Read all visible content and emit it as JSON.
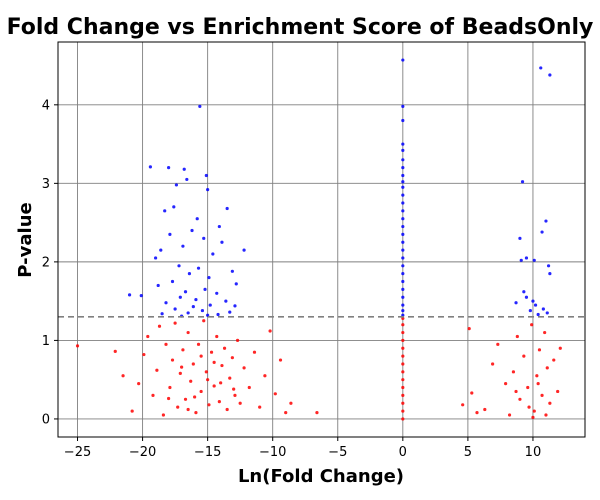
{
  "chart_data": {
    "type": "scatter",
    "title": "Fold Change vs Enrichment Score of BeadsOnly",
    "xlabel": "Ln(Fold Change)",
    "ylabel": "P-value",
    "xlim": [
      -26.5,
      14
    ],
    "ylim": [
      -0.23,
      4.8
    ],
    "x_ticks": [
      -25,
      -20,
      -15,
      -10,
      -5,
      0,
      5,
      10
    ],
    "y_ticks": [
      0,
      1,
      2,
      3,
      4
    ],
    "grid": true,
    "threshold": {
      "y": 1.3,
      "style": "dashed",
      "color": "#808080"
    },
    "colors": {
      "above_threshold": "#0000ff",
      "below_threshold": "#ff0000"
    },
    "series": [
      {
        "color": "#0000ff",
        "points": [
          [
            -15.6,
            3.98
          ],
          [
            -19.4,
            3.21
          ],
          [
            -18.0,
            3.2
          ],
          [
            -16.8,
            3.18
          ],
          [
            -15.1,
            3.1
          ],
          [
            -16.6,
            3.05
          ],
          [
            -17.4,
            2.98
          ],
          [
            -15.0,
            2.92
          ],
          [
            -13.5,
            2.68
          ],
          [
            -17.6,
            2.7
          ],
          [
            -18.3,
            2.65
          ],
          [
            -15.8,
            2.55
          ],
          [
            -14.1,
            2.45
          ],
          [
            -16.2,
            2.4
          ],
          [
            -17.9,
            2.35
          ],
          [
            -15.3,
            2.3
          ],
          [
            -13.9,
            2.25
          ],
          [
            -16.9,
            2.2
          ],
          [
            -18.6,
            2.15
          ],
          [
            -14.6,
            2.1
          ],
          [
            -19.0,
            2.05
          ],
          [
            -12.2,
            2.15
          ],
          [
            -17.2,
            1.95
          ],
          [
            -15.7,
            1.92
          ],
          [
            -13.1,
            1.88
          ],
          [
            -16.4,
            1.85
          ],
          [
            -14.9,
            1.8
          ],
          [
            -17.7,
            1.75
          ],
          [
            -18.8,
            1.7
          ],
          [
            -12.8,
            1.72
          ],
          [
            -15.2,
            1.65
          ],
          [
            -16.7,
            1.62
          ],
          [
            -14.3,
            1.6
          ],
          [
            -21.0,
            1.58
          ],
          [
            -20.1,
            1.57
          ],
          [
            -17.1,
            1.55
          ],
          [
            -15.9,
            1.52
          ],
          [
            -13.6,
            1.5
          ],
          [
            -18.2,
            1.48
          ],
          [
            -14.8,
            1.45
          ],
          [
            -16.1,
            1.43
          ],
          [
            -12.9,
            1.44
          ],
          [
            -17.5,
            1.4
          ],
          [
            -15.4,
            1.38
          ],
          [
            -13.3,
            1.36
          ],
          [
            -16.5,
            1.35
          ],
          [
            -14.2,
            1.33
          ],
          [
            -18.5,
            1.34
          ],
          [
            -15.0,
            1.32
          ],
          [
            -17.0,
            1.31
          ],
          [
            0,
            4.57
          ],
          [
            0,
            3.98
          ],
          [
            0,
            3.8
          ],
          [
            0,
            3.5
          ],
          [
            0,
            3.42
          ],
          [
            0,
            3.3
          ],
          [
            0,
            3.2
          ],
          [
            0,
            3.1
          ],
          [
            0,
            3.02
          ],
          [
            0,
            2.95
          ],
          [
            0,
            2.85
          ],
          [
            0,
            2.75
          ],
          [
            0,
            2.65
          ],
          [
            0,
            2.55
          ],
          [
            0,
            2.45
          ],
          [
            0,
            2.35
          ],
          [
            0,
            2.25
          ],
          [
            0,
            2.15
          ],
          [
            0,
            2.05
          ],
          [
            0,
            1.95
          ],
          [
            0,
            1.85
          ],
          [
            0,
            1.75
          ],
          [
            0,
            1.65
          ],
          [
            0,
            1.55
          ],
          [
            0,
            1.45
          ],
          [
            0,
            1.38
          ],
          [
            0,
            1.32
          ],
          [
            10.6,
            4.47
          ],
          [
            11.3,
            4.38
          ],
          [
            9.2,
            3.02
          ],
          [
            11.0,
            2.52
          ],
          [
            10.7,
            2.38
          ],
          [
            9.0,
            2.3
          ],
          [
            9.5,
            2.05
          ],
          [
            9.1,
            2.02
          ],
          [
            10.1,
            2.02
          ],
          [
            11.2,
            1.95
          ],
          [
            11.3,
            1.85
          ],
          [
            9.3,
            1.62
          ],
          [
            9.5,
            1.55
          ],
          [
            8.7,
            1.48
          ],
          [
            10.0,
            1.5
          ],
          [
            10.2,
            1.45
          ],
          [
            10.8,
            1.4
          ],
          [
            9.8,
            1.38
          ],
          [
            11.1,
            1.35
          ],
          [
            10.4,
            1.33
          ]
        ]
      },
      {
        "color": "#ff0000",
        "points": [
          [
            -25.0,
            0.93
          ],
          [
            -22.1,
            0.86
          ],
          [
            -21.5,
            0.55
          ],
          [
            -20.8,
            0.1
          ],
          [
            -20.3,
            0.45
          ],
          [
            -19.9,
            0.82
          ],
          [
            -19.6,
            1.05
          ],
          [
            -19.2,
            0.3
          ],
          [
            -18.9,
            0.62
          ],
          [
            -18.7,
            1.18
          ],
          [
            -18.4,
            0.05
          ],
          [
            -18.2,
            0.95
          ],
          [
            -17.9,
            0.4
          ],
          [
            -17.7,
            0.75
          ],
          [
            -17.5,
            1.22
          ],
          [
            -17.3,
            0.15
          ],
          [
            -17.1,
            0.58
          ],
          [
            -16.9,
            0.88
          ],
          [
            -16.7,
            0.25
          ],
          [
            -16.5,
            1.1
          ],
          [
            -16.3,
            0.48
          ],
          [
            -16.1,
            0.7
          ],
          [
            -15.9,
            0.08
          ],
          [
            -15.7,
            0.95
          ],
          [
            -15.5,
            0.35
          ],
          [
            -15.3,
            1.25
          ],
          [
            -15.1,
            0.6
          ],
          [
            -14.9,
            0.18
          ],
          [
            -14.7,
            0.85
          ],
          [
            -14.5,
            0.42
          ],
          [
            -14.3,
            1.05
          ],
          [
            -14.1,
            0.22
          ],
          [
            -13.9,
            0.68
          ],
          [
            -13.7,
            0.9
          ],
          [
            -13.5,
            0.12
          ],
          [
            -13.3,
            0.52
          ],
          [
            -13.1,
            0.78
          ],
          [
            -12.9,
            0.3
          ],
          [
            -12.7,
            1.0
          ],
          [
            -12.5,
            0.2
          ],
          [
            -12.2,
            0.65
          ],
          [
            -11.8,
            0.4
          ],
          [
            -11.4,
            0.85
          ],
          [
            -11.0,
            0.15
          ],
          [
            -10.6,
            0.55
          ],
          [
            -10.2,
            1.12
          ],
          [
            -9.8,
            0.32
          ],
          [
            -9.4,
            0.75
          ],
          [
            -9.0,
            0.08
          ],
          [
            -8.6,
            0.2
          ],
          [
            -6.6,
            0.08
          ],
          [
            -15.0,
            0.5
          ],
          [
            -16.0,
            0.28
          ],
          [
            -14.0,
            0.46
          ],
          [
            -17.0,
            0.66
          ],
          [
            -15.5,
            0.8
          ],
          [
            -16.5,
            0.12
          ],
          [
            -14.5,
            0.72
          ],
          [
            -13.0,
            0.38
          ],
          [
            -18.0,
            0.26
          ],
          [
            0,
            1.28
          ],
          [
            0,
            1.2
          ],
          [
            0,
            1.1
          ],
          [
            0,
            1.0
          ],
          [
            0,
            0.9
          ],
          [
            0,
            0.8
          ],
          [
            0,
            0.7
          ],
          [
            0,
            0.6
          ],
          [
            0,
            0.5
          ],
          [
            0,
            0.4
          ],
          [
            0,
            0.3
          ],
          [
            0,
            0.2
          ],
          [
            0,
            0.1
          ],
          [
            0,
            0.0
          ],
          [
            4.6,
            0.18
          ],
          [
            5.1,
            1.15
          ],
          [
            5.3,
            0.33
          ],
          [
            5.7,
            0.08
          ],
          [
            6.3,
            0.12
          ],
          [
            6.9,
            0.7
          ],
          [
            7.3,
            0.95
          ],
          [
            7.9,
            0.45
          ],
          [
            8.2,
            0.05
          ],
          [
            8.5,
            0.6
          ],
          [
            8.8,
            1.05
          ],
          [
            9.0,
            0.25
          ],
          [
            9.3,
            0.8
          ],
          [
            9.6,
            0.4
          ],
          [
            9.9,
            1.2
          ],
          [
            10.1,
            0.1
          ],
          [
            10.3,
            0.55
          ],
          [
            10.5,
            0.88
          ],
          [
            10.7,
            0.3
          ],
          [
            10.9,
            1.1
          ],
          [
            11.1,
            0.65
          ],
          [
            11.3,
            0.2
          ],
          [
            11.6,
            0.75
          ],
          [
            11.9,
            0.35
          ],
          [
            12.1,
            0.9
          ],
          [
            10.0,
            0.02
          ],
          [
            9.7,
            0.15
          ],
          [
            10.4,
            0.45
          ],
          [
            11.0,
            0.05
          ],
          [
            8.7,
            0.35
          ]
        ]
      }
    ]
  }
}
